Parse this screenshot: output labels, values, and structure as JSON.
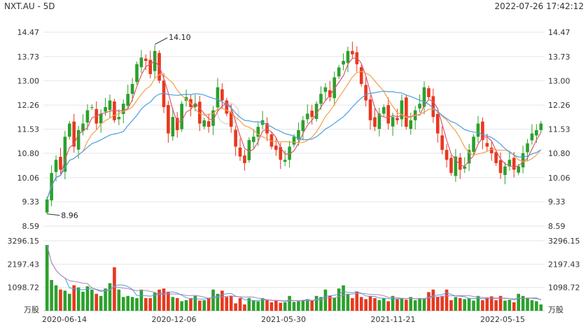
{
  "header": {
    "symbol": "NXT.AU - 5D",
    "datetime": "2022-07-26 17:42:12"
  },
  "colors": {
    "up": "#2ca02c",
    "down": "#e8381f",
    "ma1": "#e0566f",
    "ma2": "#f5a04a",
    "ma3": "#4a9fe0",
    "grid": "#e5e5e5"
  },
  "chart_data": [
    {
      "type": "candlestick",
      "title": "NXT.AU - 5D",
      "y_ticks": [
        "14.47",
        "13.73",
        "13.00",
        "12.26",
        "11.53",
        "10.80",
        "10.06",
        "9.33",
        "8.59"
      ],
      "ylim": [
        8.59,
        14.47
      ],
      "x_labels": [
        "2020-06-14",
        "2020-12-06",
        "2021-05-30",
        "2021-11-21",
        "2022-05-15"
      ],
      "annotations": [
        {
          "text": "14.10",
          "value": 14.1
        },
        {
          "text": "8.96",
          "value": 8.96
        }
      ],
      "grid": true,
      "series_close": [
        9.4,
        10.2,
        10.6,
        10.3,
        11.3,
        11.7,
        11.0,
        11.5,
        11.7,
        12.1,
        12.2,
        11.7,
        12.0,
        12.2,
        12.4,
        11.8,
        11.9,
        12.3,
        12.6,
        12.9,
        13.5,
        13.7,
        13.6,
        13.2,
        13.9,
        13.0,
        12.2,
        11.4,
        11.9,
        11.5,
        12.3,
        12.5,
        12.2,
        12.3,
        11.7,
        11.8,
        11.6,
        12.1,
        12.8,
        12.4,
        12.0,
        11.6,
        11.0,
        10.7,
        10.5,
        11.2,
        11.3,
        11.6,
        11.8,
        11.4,
        11.0,
        10.9,
        10.6,
        10.6,
        11.0,
        11.3,
        11.5,
        11.8,
        12.0,
        11.9,
        12.3,
        12.6,
        12.8,
        12.5,
        13.1,
        13.4,
        13.6,
        13.9,
        13.8,
        13.5,
        12.9,
        12.4,
        11.8,
        11.6,
        12.0,
        12.2,
        11.7,
        11.9,
        11.8,
        12.4,
        11.6,
        11.8,
        12.1,
        12.3,
        12.8,
        12.5,
        11.9,
        11.4,
        10.9,
        10.6,
        10.2,
        10.7,
        10.3,
        10.4,
        10.9,
        11.3,
        11.7,
        11.2,
        11.0,
        10.8,
        10.5,
        10.2,
        10.4,
        10.6,
        10.3,
        10.4,
        10.8,
        11.1,
        11.4,
        11.5,
        11.7
      ],
      "volume_y_ticks": [
        "3296.15",
        "2197.43",
        "1098.72"
      ],
      "volume_ylim": [
        0,
        3296.15
      ],
      "volume_unit": "万股",
      "volumes": [
        3100,
        1450,
        1200,
        1000,
        950,
        800,
        1200,
        1100,
        900,
        1150,
        1000,
        800,
        700,
        1050,
        1300,
        2050,
        1000,
        650,
        700,
        650,
        600,
        1000,
        600,
        600,
        850,
        1000,
        1050,
        900,
        650,
        600,
        450,
        500,
        600,
        700,
        480,
        500,
        600,
        1000,
        800,
        950,
        650,
        700,
        350,
        600,
        300,
        600,
        500,
        450,
        600,
        500,
        400,
        500,
        380,
        400,
        700,
        420,
        450,
        500,
        550,
        500,
        700,
        650,
        1000,
        700,
        600,
        1050,
        1200,
        800,
        600,
        900,
        650,
        550,
        700,
        600,
        500,
        600,
        450,
        700,
        550,
        600,
        520,
        650,
        500,
        600,
        580,
        880,
        1000,
        650,
        700,
        1000,
        500,
        650,
        600,
        550,
        600,
        480,
        700,
        500,
        620,
        680,
        500,
        700,
        480,
        520,
        400,
        800,
        700,
        600,
        500,
        450,
        300
      ]
    }
  ]
}
